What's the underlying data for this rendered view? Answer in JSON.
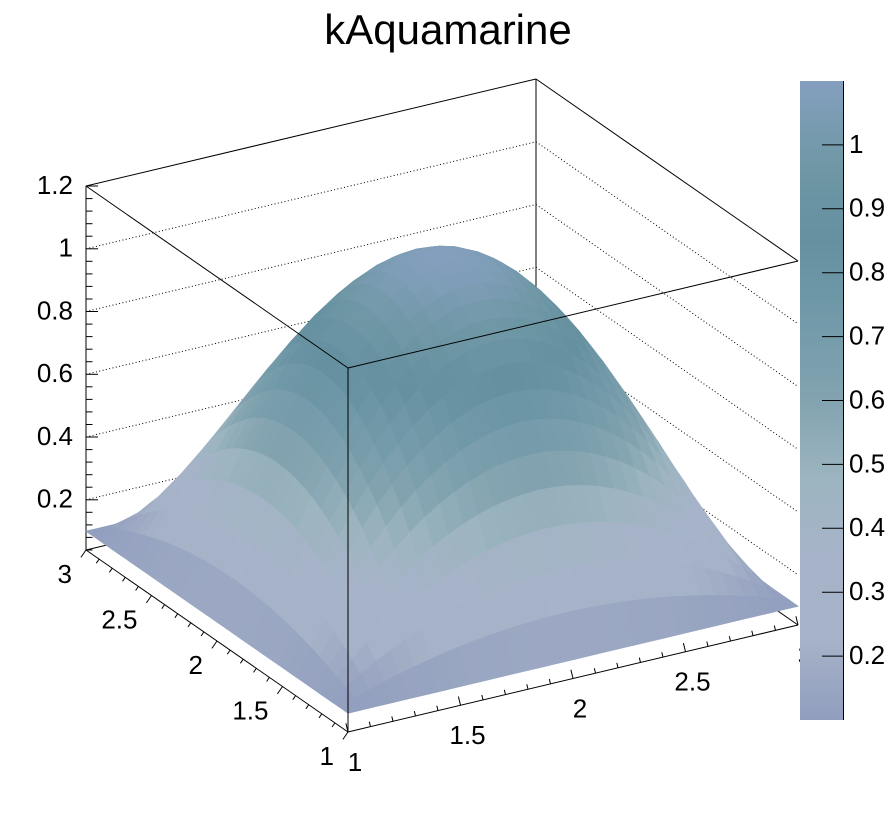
{
  "title": "kAquamarine",
  "chart_data": {
    "type": "surface3d",
    "title": "kAquamarine",
    "function": "f(x,y) = 0.1 + (1-(x-2)^2) * (1-(y-2)^2)",
    "draw_option": "SURF2",
    "x_range": [
      1,
      3
    ],
    "y_range": [
      1,
      3
    ],
    "z_range": [
      0.1,
      1.1
    ],
    "grid_points": 30,
    "x_axis": {
      "tick_values": [
        1,
        1.5,
        2,
        2.5,
        3
      ],
      "tick_labels": [
        "1",
        "1.5",
        "2",
        "2.5",
        "3"
      ],
      "minor_step": 0.1
    },
    "y_axis": {
      "tick_values": [
        3,
        2.5,
        2,
        1.5,
        1
      ],
      "tick_labels": [
        "3",
        "2.5",
        "2",
        "1.5",
        "1"
      ],
      "minor_step": 0.1
    },
    "z_axis": {
      "axis_min": 0.04,
      "axis_max": 1.2,
      "tick_values": [
        0.2,
        0.4,
        0.6,
        0.8,
        1.0,
        1.2
      ],
      "tick_labels": [
        "0.2",
        "0.4",
        "0.6",
        "0.8",
        "1",
        "1.2"
      ],
      "minor_step": 0.04,
      "grid_style": "dotted",
      "grid_values": [
        0.2,
        0.4,
        0.6,
        0.8,
        1.0
      ]
    },
    "palette": {
      "name": "kAquamarine",
      "colors": [
        "#919EBE",
        "#A6B2C7",
        "#A7B3C9",
        "#9CB5C0",
        "#83A3B0",
        "#729AA9",
        "#6590A0",
        "#7098A6",
        "#849FBE"
      ],
      "bar_min": 0.1,
      "bar_max": 1.1,
      "tick_values": [
        0.2,
        0.3,
        0.4,
        0.5,
        0.6,
        0.7,
        0.8,
        0.9,
        1.0
      ],
      "tick_labels": [
        "0.2",
        "0.3",
        "0.4",
        "0.5",
        "0.6",
        "0.7",
        "0.8",
        "0.9",
        "1"
      ]
    }
  }
}
